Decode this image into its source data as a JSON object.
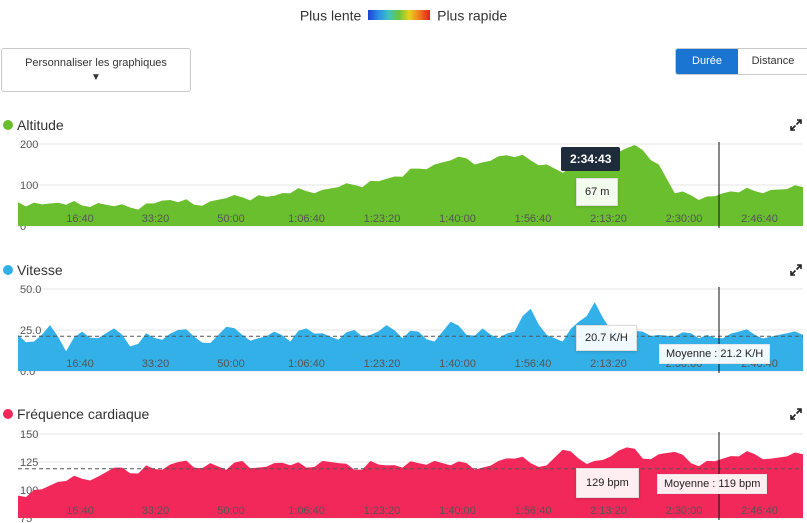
{
  "legend": {
    "slow_label": "Plus lente",
    "fast_label": "Plus rapide"
  },
  "controls": {
    "customize_label": "Personnaliser les graphiques",
    "customize_arrow": "▼",
    "toggle_duration": "Durée",
    "toggle_distance": "Distance"
  },
  "cursor": {
    "time_label": "2:34:43"
  },
  "x_ticks": [
    "16:40",
    "33:20",
    "50:00",
    "1:06:40",
    "1:23:20",
    "1:40:00",
    "1:56:40",
    "2:13:20",
    "2:30:00",
    "2:46:40"
  ],
  "charts": [
    {
      "key": "altitude",
      "title": "Altitude",
      "color": "#6abf2e",
      "y_ticks": [
        "200",
        "100",
        "0"
      ],
      "y_min": 0,
      "y_max": 200,
      "tooltip": "67 m",
      "avg_label": "",
      "chart_data": {
        "type": "area",
        "title": "Altitude",
        "x_unit": "minutes",
        "ylim": [
          0,
          200
        ],
        "series": [
          {
            "name": "Altitude",
            "values": [
              58,
              57,
              55,
              52,
              50,
              56,
              48,
              45,
              55,
              62,
              58,
              52,
              60,
              68,
              70,
              75,
              74,
              80,
              85,
              88,
              95,
              100,
              110,
              115,
              120,
              140,
              150,
              160,
              165,
              155,
              170,
              168,
              160,
              150,
              130,
              140,
              150,
              165,
              190,
              185,
              150,
              80,
              75,
              72,
              80,
              82,
              85,
              88,
              90,
              95
            ]
          }
        ]
      }
    },
    {
      "key": "speed",
      "title": "Vitesse",
      "color": "#33b0e8",
      "y_ticks": [
        "50.0",
        "25.0",
        "0.0"
      ],
      "y_min": 0,
      "y_max": 50,
      "tooltip": "20.7 K/H",
      "avg_label": "Moyenne : 21.2 K/H",
      "avg_value": 21.2,
      "chart_data": {
        "type": "area",
        "title": "Vitesse",
        "x_unit": "minutes",
        "ylim": [
          0,
          50
        ],
        "series": [
          {
            "name": "Vitesse",
            "values": [
              22,
              18,
              28,
              12,
              24,
              20,
              26,
              15,
              23,
              19,
              25,
              21,
              17,
              27,
              22,
              20,
              24,
              18,
              26,
              23,
              19,
              25,
              22,
              28,
              20,
              24,
              18,
              30,
              22,
              26,
              20,
              24,
              38,
              22,
              18,
              30,
              42,
              25,
              20,
              24,
              22,
              21,
              23,
              22,
              20,
              24,
              22,
              21,
              23,
              22
            ]
          }
        ]
      }
    },
    {
      "key": "hr",
      "title": "Fréquence cardiaque",
      "color": "#f2285a",
      "y_ticks": [
        "150",
        "125",
        "100",
        "75"
      ],
      "y_min": 75,
      "y_max": 150,
      "tooltip": "129 bpm",
      "avg_label": "Moyenne : 119 bpm",
      "avg_value": 119,
      "chart_data": {
        "type": "area",
        "title": "Fréquence cardiaque",
        "x_unit": "minutes",
        "ylim": [
          75,
          150
        ],
        "series": [
          {
            "name": "Fréquence cardiaque",
            "values": [
              95,
              100,
              104,
              108,
              110,
              112,
              120,
              115,
              122,
              118,
              125,
              120,
              124,
              118,
              126,
              120,
              124,
              122,
              120,
              126,
              124,
              118,
              126,
              122,
              120,
              124,
              126,
              122,
              124,
              120,
              126,
              128,
              124,
              122,
              136,
              128,
              126,
              130,
              138,
              128,
              132,
              134,
              124,
              126,
              128,
              130,
              132,
              128,
              130,
              132
            ]
          }
        ]
      }
    }
  ]
}
